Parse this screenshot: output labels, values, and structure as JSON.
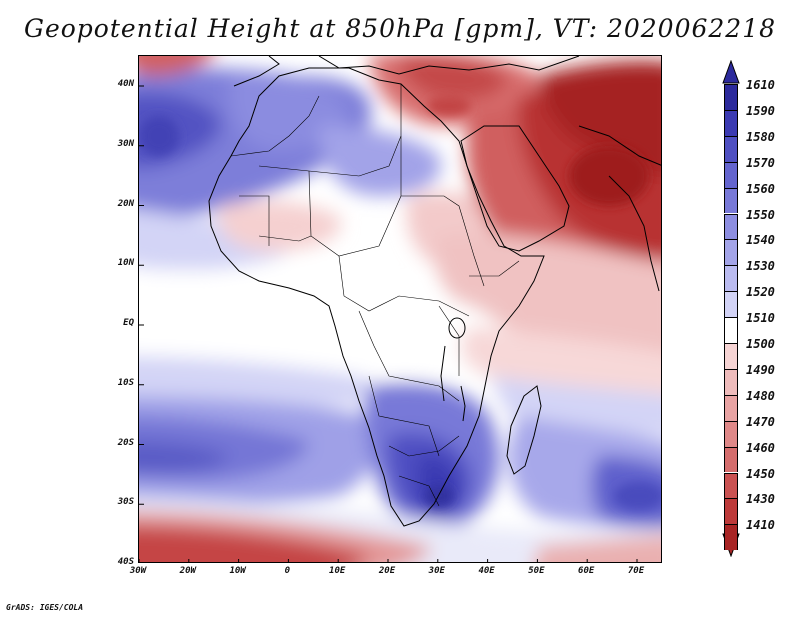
{
  "title": "Geopotential Height at 850hPa [gpm], VT: 2020062218",
  "credit": "GrADS: IGES/COLA",
  "lat_labels": [
    "40N",
    "30N",
    "20N",
    "10N",
    "EQ",
    "10S",
    "20S",
    "30S",
    "40S"
  ],
  "lon_labels": [
    "30W",
    "20W",
    "10W",
    "0",
    "10E",
    "20E",
    "30E",
    "40E",
    "50E",
    "60E",
    "70E"
  ],
  "colorbar": {
    "levels": [
      "1610",
      "1590",
      "1580",
      "1570",
      "1560",
      "1550",
      "1540",
      "1530",
      "1520",
      "1510",
      "1500",
      "1490",
      "1480",
      "1470",
      "1460",
      "1450",
      "1430",
      "1410"
    ],
    "colors": [
      "#2c2a9c",
      "#3b3ab2",
      "#4f50c2",
      "#6465cf",
      "#7879d8",
      "#8d8ee1",
      "#a3a4e8",
      "#babbf0",
      "#d2d3f6",
      "#ffffff",
      "#f6d4d4",
      "#efbcbc",
      "#e8a3a3",
      "#df8888",
      "#d56d6d",
      "#ca5252",
      "#bd3a3a",
      "#a82525"
    ]
  },
  "map_regions": [
    "north-africa-low-band",
    "east-med-red",
    "arabia-india-red",
    "sahara-blue-lobe",
    "southern-africa-blue",
    "south-atlantic-blue",
    "southern-ocean-red",
    "indian-ocean-red"
  ]
}
